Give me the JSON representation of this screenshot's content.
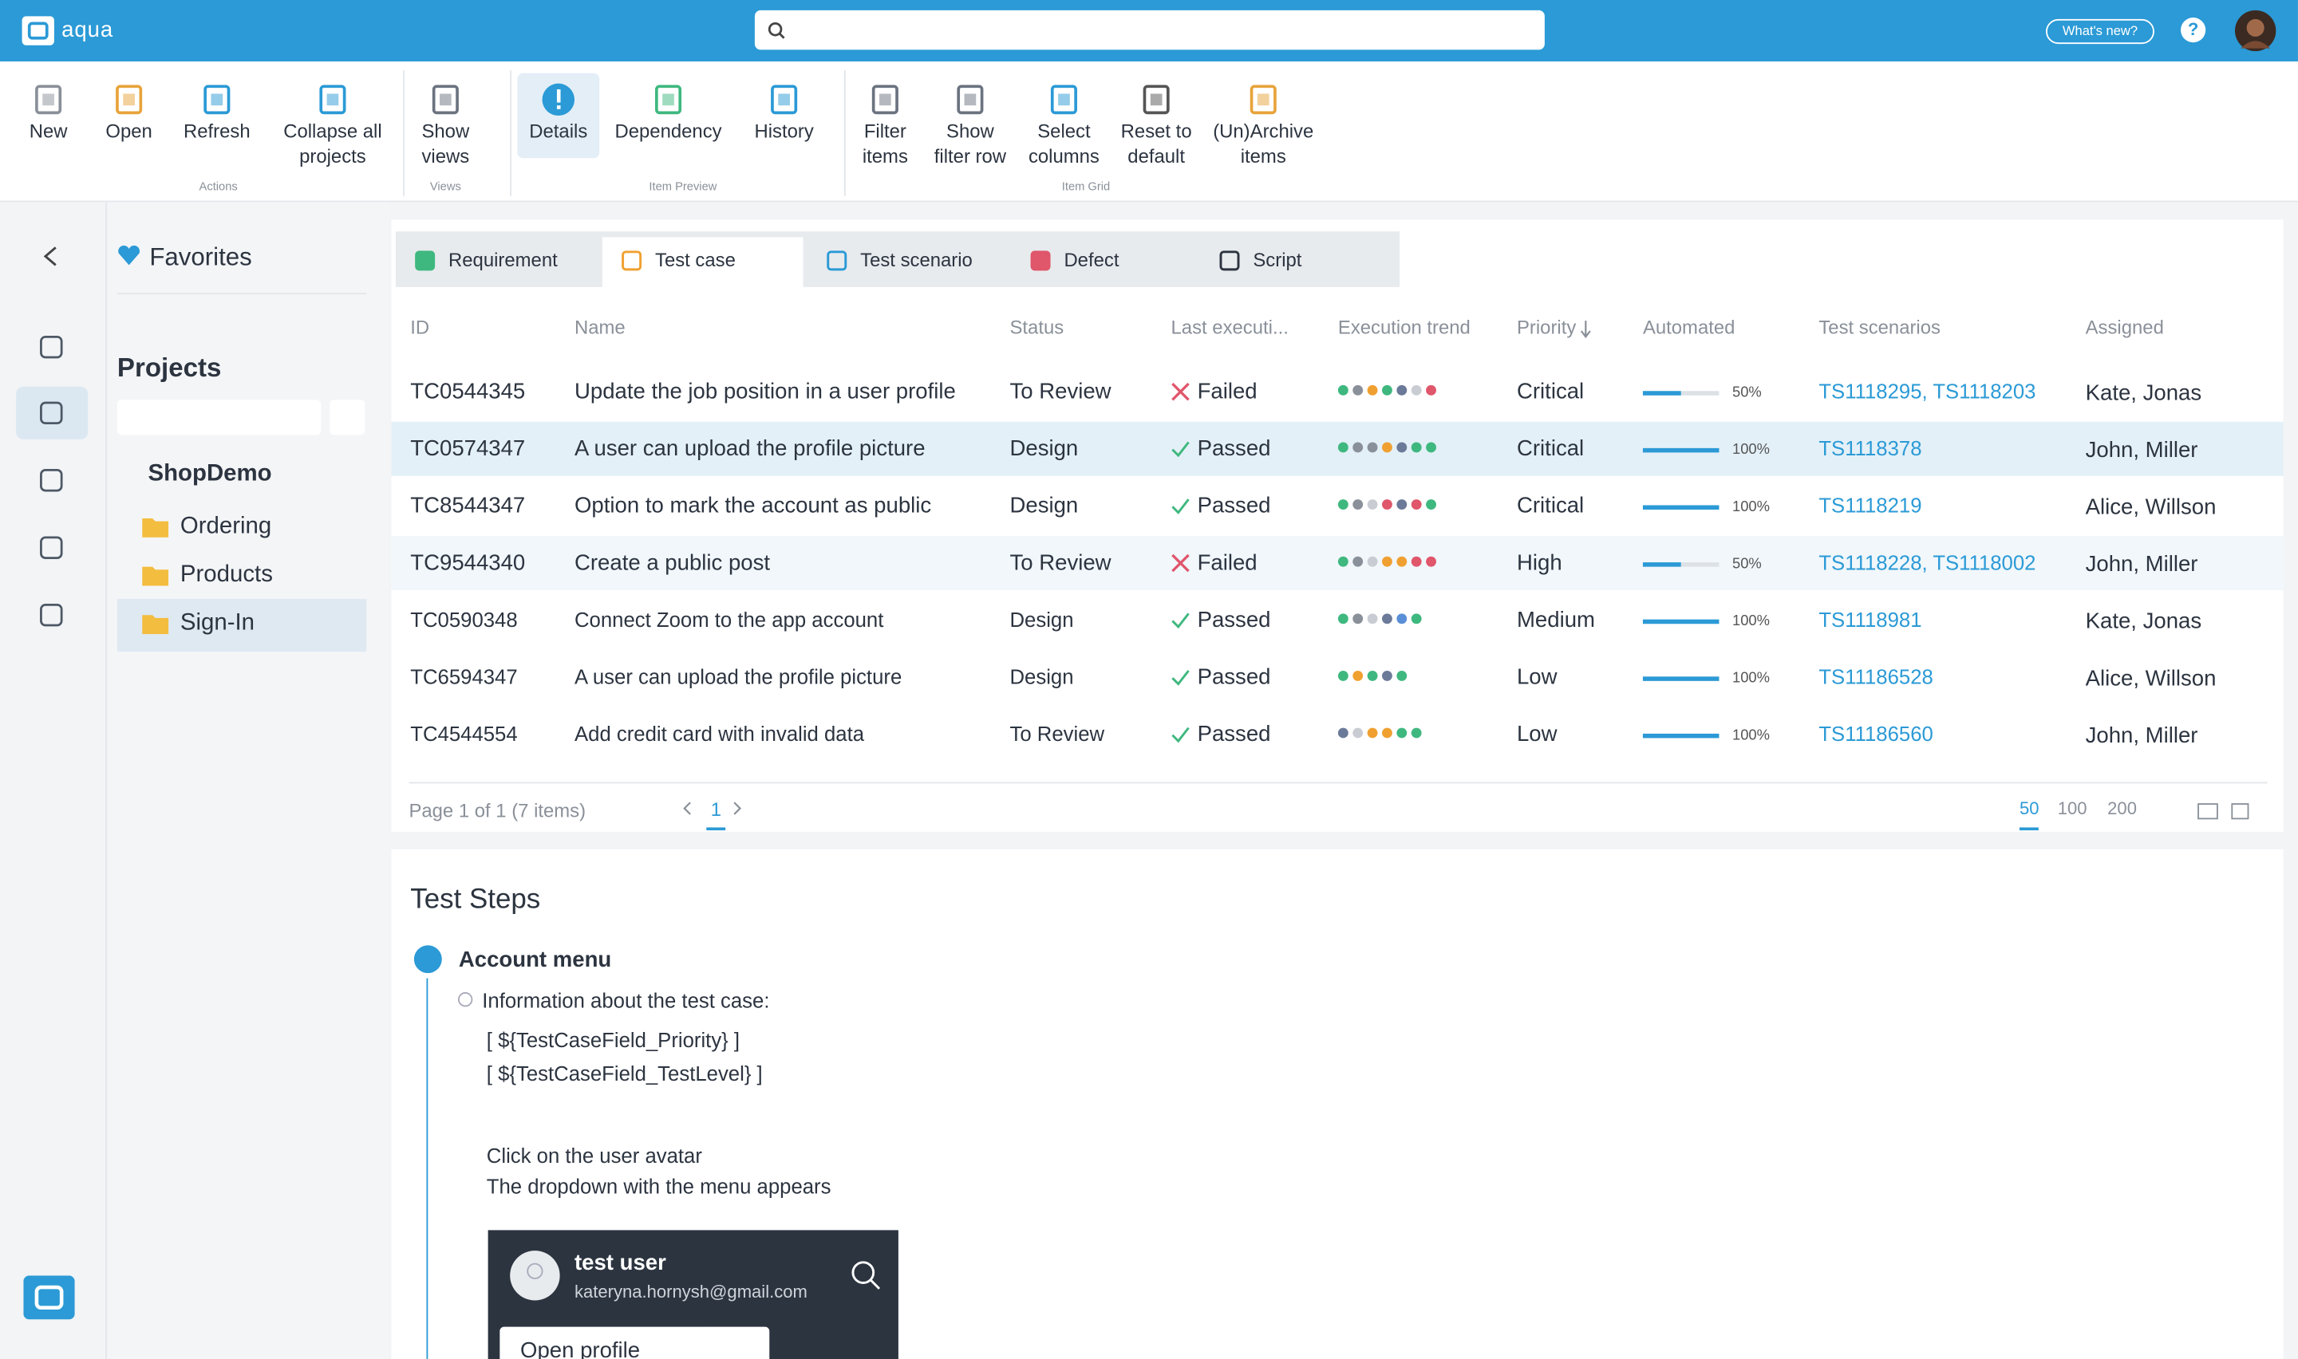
{
  "header": {
    "logo": "aqua",
    "whats_new": "What's new?",
    "help": "?"
  },
  "toolbar": {
    "groups": [
      {
        "label": "Actions",
        "items": [
          "New",
          "Open",
          "Refresh",
          "Collapse all projects"
        ]
      },
      {
        "label": "Views",
        "items": [
          "Show views"
        ]
      },
      {
        "label": "Item Preview",
        "items": [
          "Details",
          "Dependency",
          "History"
        ]
      },
      {
        "label": "Item Grid",
        "items": [
          "Filter items",
          "Show filter row",
          "Select columns",
          "Reset to default",
          "(Un)Archive items"
        ]
      }
    ]
  },
  "sidebar": {
    "favorites": "Favorites",
    "projects": "Projects",
    "project": "ShopDemo",
    "folders": [
      "Ordering",
      "Products",
      "Sign-In"
    ]
  },
  "tabs": [
    "Requirement",
    "Test case",
    "Test scenario",
    "Defect",
    "Script"
  ],
  "table": {
    "columns": [
      "ID",
      "Name",
      "Status",
      "Last executi...",
      "Execution trend",
      "Priority",
      "Automated",
      "Test scenarios",
      "Assigned"
    ],
    "rows": [
      {
        "id": "TC0544345",
        "name": "Update the job position in a user profile",
        "status": "To Review",
        "last_execution": {
          "label": "Failed",
          "icon": "cross"
        },
        "trend": [
          "#3fb87f",
          "#8a9099",
          "#f0a030",
          "#3fb87f",
          "#6b7a99",
          "#c9cdd3",
          "#e0566b"
        ],
        "priority": "Critical",
        "automated": {
          "value": 50,
          "label": "50%"
        },
        "test_scenarios": "TS1118295, TS1118203",
        "assigned": "Kate, Jonas"
      },
      {
        "id": "TC0574347",
        "name": "A user can upload the profile picture",
        "status": "Design",
        "last_execution": {
          "label": "Passed",
          "icon": "check"
        },
        "trend": [
          "#3fb87f",
          "#8a9099",
          "#8a9099",
          "#f0a030",
          "#6b7a99",
          "#3fb87f",
          "#3fb87f"
        ],
        "priority": "Critical",
        "automated": {
          "value": 100,
          "label": "100%"
        },
        "test_scenarios": "TS1118378",
        "assigned": "John, Miller"
      },
      {
        "id": "TC8544347",
        "name": "Option to mark the account as public",
        "status": "Design",
        "last_execution": {
          "label": "Passed",
          "icon": "check"
        },
        "trend": [
          "#3fb87f",
          "#8a9099",
          "#c9cdd3",
          "#e0566b",
          "#6b7a99",
          "#e0566b",
          "#3fb87f"
        ],
        "priority": "Critical",
        "automated": {
          "value": 100,
          "label": "100%"
        },
        "test_scenarios": "TS1118219",
        "assigned": "Alice, Willson"
      },
      {
        "id": "TC9544340",
        "name": "Create a public post",
        "status": "To Review",
        "last_execution": {
          "label": "Failed",
          "icon": "cross"
        },
        "trend": [
          "#3fb87f",
          "#8a9099",
          "#c9cdd3",
          "#f0a030",
          "#f0a030",
          "#e0566b",
          "#e0566b"
        ],
        "priority": "High",
        "automated": {
          "value": 50,
          "label": "50%"
        },
        "test_scenarios": "TS1118228, TS1118002",
        "assigned": "John, Miller"
      },
      {
        "id": "TC0590348",
        "name": "Connect Zoom to the app account",
        "status": "Design",
        "last_execution": {
          "label": "Passed",
          "icon": "check"
        },
        "trend": [
          "#3fb87f",
          "#8a9099",
          "#c9cdd3",
          "#6b7a99",
          "#5a8fd8",
          "#3fb87f"
        ],
        "priority": "Medium",
        "automated": {
          "value": 100,
          "label": "100%"
        },
        "test_scenarios": "TS1118981",
        "assigned": "Kate, Jonas"
      },
      {
        "id": "TC6594347",
        "name": "A user can upload the profile picture",
        "status": "Design",
        "last_execution": {
          "label": "Passed",
          "icon": "check"
        },
        "trend": [
          "#3fb87f",
          "#f0a030",
          "#3fb87f",
          "#6b7a99",
          "#3fb87f"
        ],
        "priority": "Low",
        "automated": {
          "value": 100,
          "label": "100%"
        },
        "test_scenarios": "TS11186528",
        "assigned": "Alice, Willson"
      },
      {
        "id": "TC4544554",
        "name": "Add credit card with invalid data",
        "status": "To Review",
        "last_execution": {
          "label": "Passed",
          "icon": "check"
        },
        "trend": [
          "#6b7a99",
          "#c9cdd3",
          "#f0a030",
          "#f0a030",
          "#3fb87f",
          "#3fb87f"
        ],
        "priority": "Low",
        "automated": {
          "value": 100,
          "label": "100%"
        },
        "test_scenarios": "TS11186560",
        "assigned": "John, Miller"
      }
    ]
  },
  "pagination": {
    "summary": "Page 1 of 1 (7 items)",
    "page": "1",
    "page_sizes": [
      50,
      100,
      200
    ]
  },
  "test_steps": {
    "title": "Test Steps",
    "step": "Account menu",
    "info": "Information about the test case:",
    "lines": [
      "[ ${TestCaseField_Priority} ]",
      "[ ${TestCaseField_TestLevel} ]"
    ],
    "actions": [
      "Click on the user avatar",
      "The dropdown with the menu appears"
    ],
    "screenshot": {
      "user": "test user",
      "email": "kateryna.hornysh@gmail.com",
      "button": "Open profile"
    }
  }
}
